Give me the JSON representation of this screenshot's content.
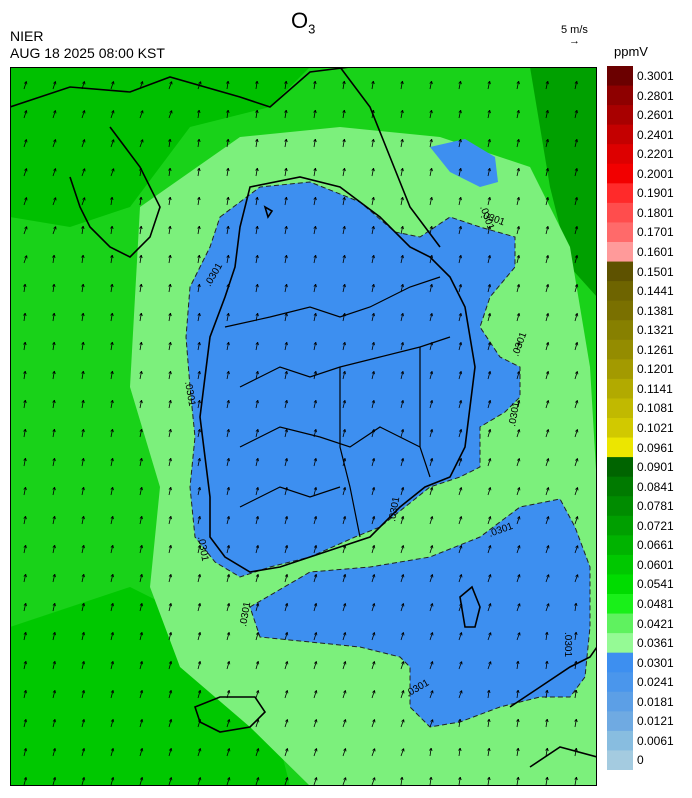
{
  "header": {
    "agency": "NIER",
    "timestamp": "AUG 18 2025 08:00 KST",
    "title_main": "O",
    "title_sub": "3",
    "wind_reference": "5 m/s",
    "unit": "ppmV"
  },
  "legend": {
    "labels": [
      "0.3001",
      "0.2801",
      "0.2601",
      "0.2401",
      "0.2201",
      "0.2001",
      "0.1901",
      "0.1801",
      "0.1701",
      "0.1601",
      "0.1501",
      "0.1441",
      "0.1381",
      "0.1321",
      "0.1261",
      "0.1201",
      "0.1141",
      "0.1081",
      "0.1021",
      "0.0961",
      "0.0901",
      "0.0841",
      "0.0781",
      "0.0721",
      "0.0661",
      "0.0601",
      "0.0541",
      "0.0481",
      "0.0421",
      "0.0361",
      "0.0301",
      "0.0241",
      "0.0181",
      "0.0121",
      "0.0061",
      "0"
    ],
    "colors": [
      "#6b0000",
      "#8e0000",
      "#a80000",
      "#c40000",
      "#dd0000",
      "#f20000",
      "#ff2a2a",
      "#ff4d4d",
      "#ff6a6a",
      "#ff9a9a",
      "#5e5200",
      "#6e6400",
      "#7a7000",
      "#878000",
      "#948c00",
      "#a39a00",
      "#b2aa00",
      "#c1b900",
      "#d1c900",
      "#ece600",
      "#006400",
      "#007a00",
      "#008c00",
      "#009f00",
      "#00b300",
      "#00c800",
      "#00dc00",
      "#19f019",
      "#5ff25f",
      "#95fa95",
      "#3d8ff0",
      "#4a96ec",
      "#5c9fe6",
      "#6faae2",
      "#88bde0",
      "#a4cbe0"
    ]
  },
  "map": {
    "contour_labels": [
      ".0301",
      ".0301",
      ".0301",
      ".0301",
      ".0301",
      ".0301",
      ".0301",
      ".0301",
      ".0301",
      ".0301",
      ".0301",
      ".0301"
    ],
    "wind_direction": "north-northeast"
  }
}
